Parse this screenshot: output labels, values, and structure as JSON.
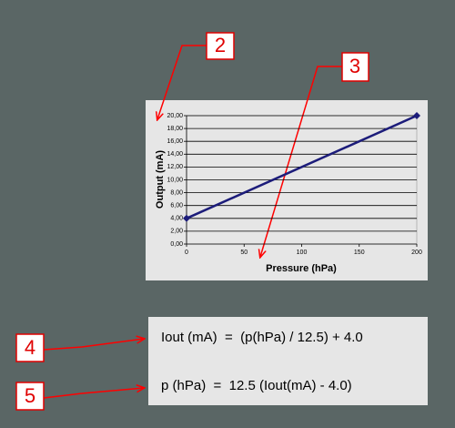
{
  "chart_data": {
    "type": "line",
    "x_label": "Pressure (hPa)",
    "y_label": "Output (mA)",
    "x": [
      0,
      200
    ],
    "values": [
      4,
      20
    ],
    "color": "#1c1c7a",
    "xlim": [
      0,
      200
    ],
    "xticks": [
      0,
      50,
      100,
      150,
      200
    ],
    "ylim": [
      0,
      20
    ],
    "yticks": [
      {
        "value": 0,
        "label": "0,00"
      },
      {
        "value": 2,
        "label": "2,00"
      },
      {
        "value": 4,
        "label": "4,00"
      },
      {
        "value": 6,
        "label": "6,00"
      },
      {
        "value": 8,
        "label": "8,00"
      },
      {
        "value": 10,
        "label": "10,00"
      },
      {
        "value": 12,
        "label": "12,00"
      },
      {
        "value": 14,
        "label": "14,00"
      },
      {
        "value": 16,
        "label": "16,00"
      },
      {
        "value": 18,
        "label": "18,00"
      },
      {
        "value": 20,
        "label": "20,00"
      }
    ],
    "grid": true
  },
  "callouts": [
    "2",
    "3",
    "4",
    "5"
  ],
  "formulas": [
    "Iout (mA)  =  (p(hPa) / 12.5) + 4.0",
    "p (hPa)  =  12.5 (Iout(mA) - 4.0)"
  ]
}
